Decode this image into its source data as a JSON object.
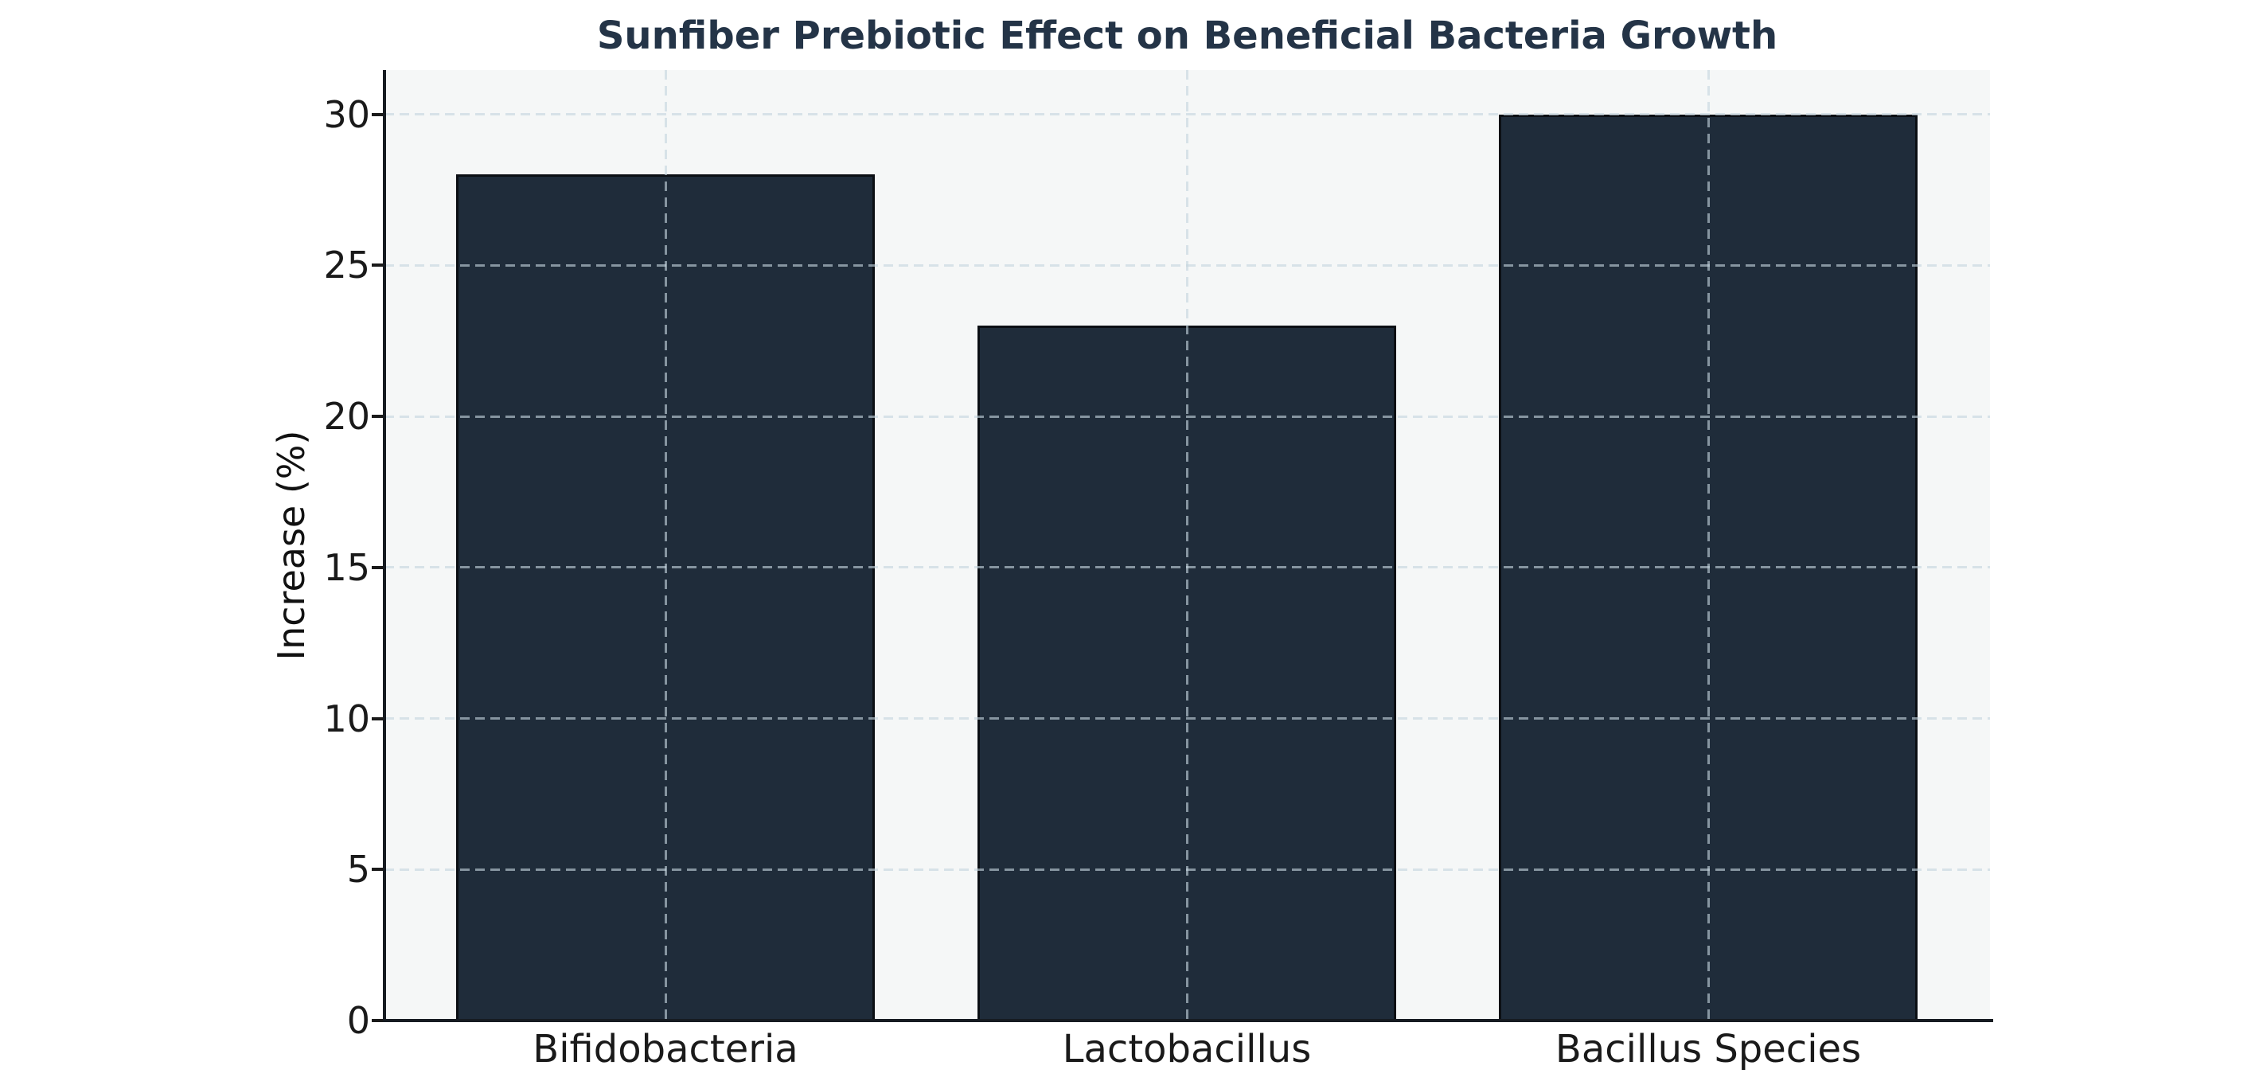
{
  "chart_data": {
    "type": "bar",
    "title": "Sunfiber Prebiotic Effect on Beneficial Bacteria Growth",
    "categories": [
      "Bifidobacteria",
      "Lactobacillus",
      "Bacillus Species"
    ],
    "values": [
      28,
      23,
      30
    ],
    "xlabel": "",
    "ylabel": "Increase (%)",
    "ylim": [
      0,
      31.5
    ],
    "yticks": [
      0,
      5,
      10,
      15,
      20,
      25,
      30
    ],
    "legend": "none",
    "grid": {
      "show": true,
      "style": "dashed",
      "horizontal_at_yticks": true,
      "vertical_at_category_centers": true,
      "drawn_above_bars": true
    },
    "colors": {
      "bar_fill": "#1f2c3a",
      "bar_edge": "#0b0f14",
      "title": "#243447",
      "tick_label": "#1a1a1a",
      "axis_label": "#111111",
      "axis_spine": "#161b21",
      "plot_background": "#f5f7f7",
      "figure_background": "#ffffff",
      "grid_line": "#c5d5df",
      "grid_alpha": 0.62
    }
  }
}
